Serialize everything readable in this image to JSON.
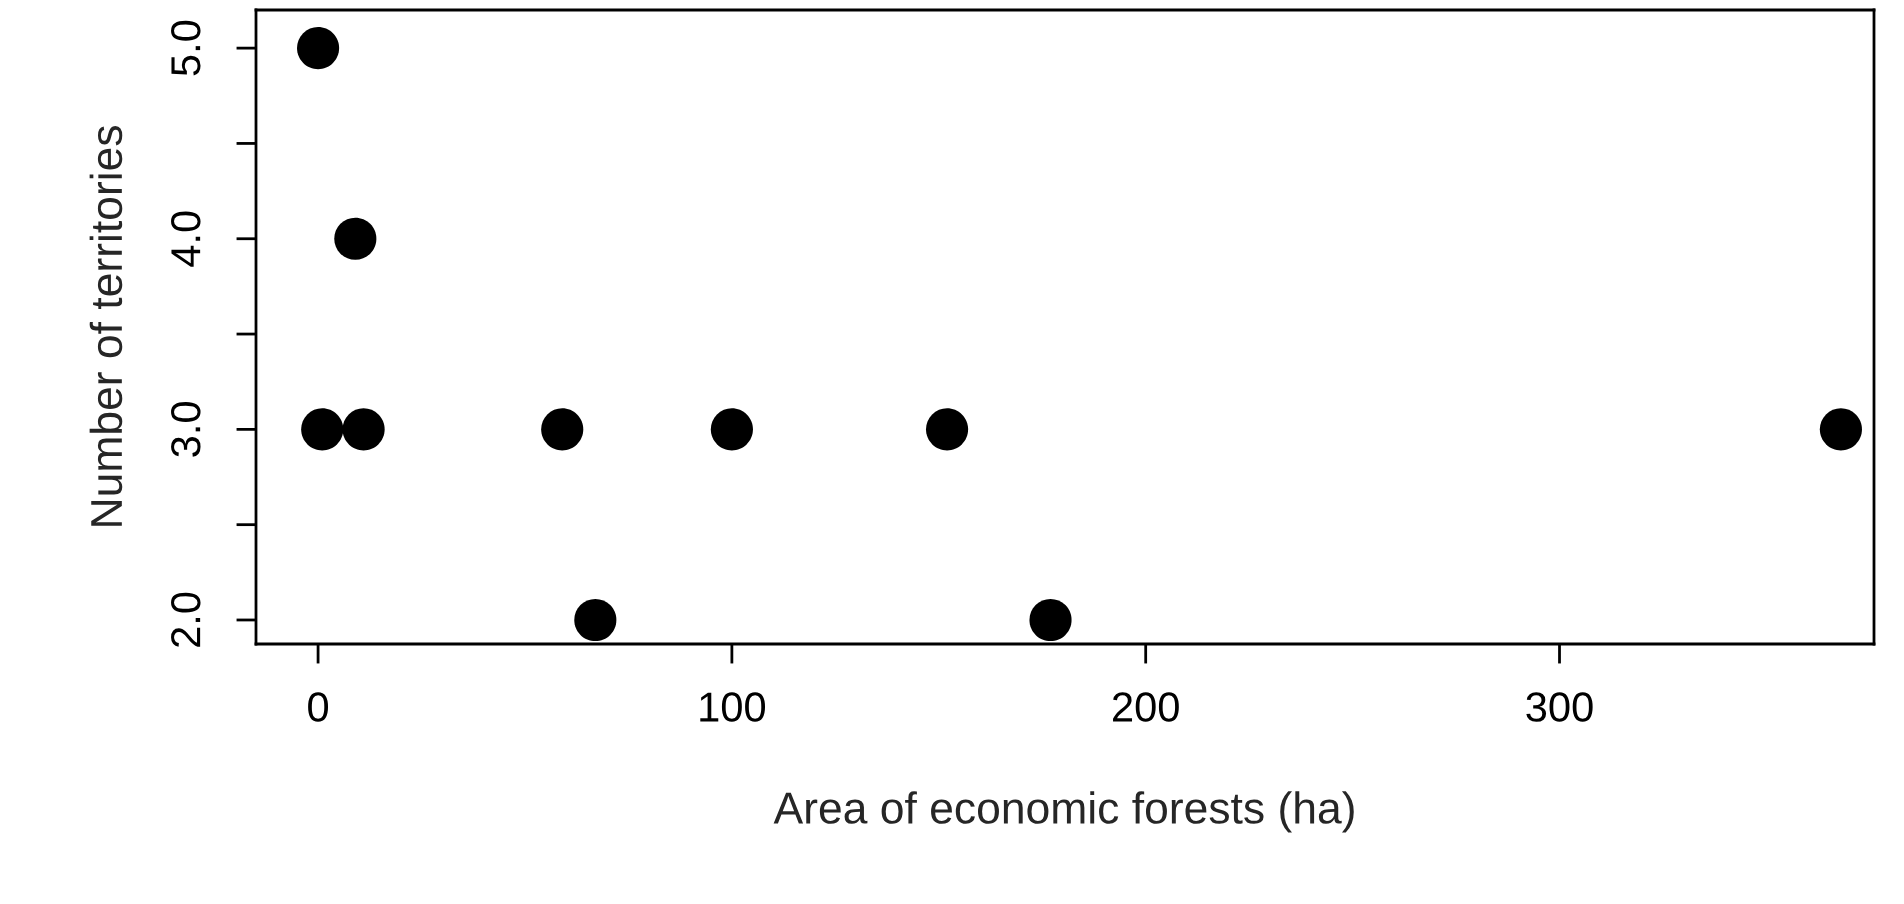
{
  "chart_data": {
    "type": "scatter",
    "xlabel": "Area of economic forests (ha)",
    "ylabel": "Number of territories",
    "x": [
      0,
      1,
      9,
      11,
      59,
      67,
      100,
      152,
      177,
      368
    ],
    "series": [
      {
        "color": "#000000",
        "values": [
          5,
          3,
          4,
          3,
          3,
          2,
          3,
          3,
          2,
          3
        ]
      }
    ],
    "marker": "circle",
    "grid": false,
    "legend": false,
    "xlim": [
      -15,
      376
    ],
    "ylim": [
      1.874,
      5.2
    ],
    "xticks": [
      0,
      100,
      200,
      300
    ],
    "yticks": [
      {
        "value": 2,
        "label": "2.0"
      },
      {
        "value": 2.5,
        "label": null
      },
      {
        "value": 3,
        "label": "3.0"
      },
      {
        "value": 3.5,
        "label": null
      },
      {
        "value": 4,
        "label": "4.0"
      },
      {
        "value": 4.5,
        "label": null
      },
      {
        "value": 5,
        "label": "5.0"
      }
    ]
  }
}
